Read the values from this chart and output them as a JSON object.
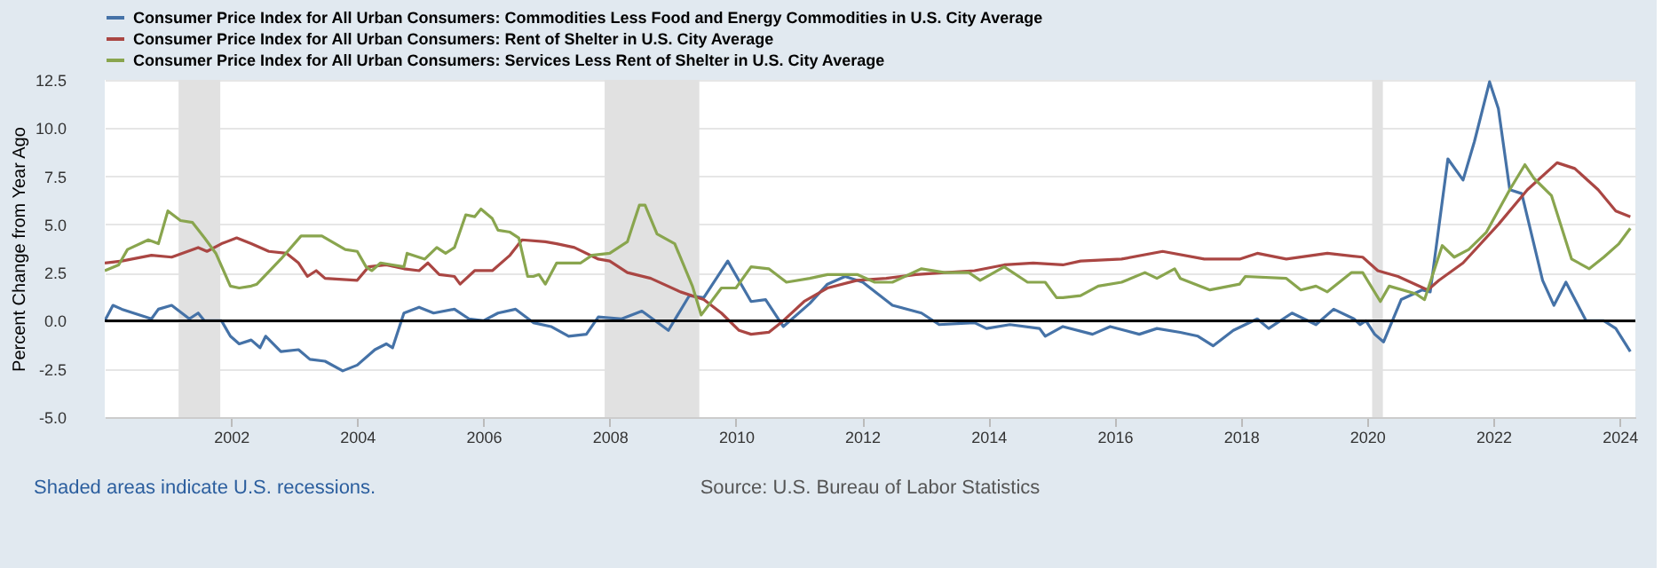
{
  "chart_data": {
    "type": "line",
    "ylabel": "Percent Change from Year Ago",
    "annotations": [
      "Shaded areas indicate U.S. recessions.",
      "Source: U.S. Bureau of Labor Statistics"
    ],
    "xlim": [
      2000.0,
      2024.25
    ],
    "xticks": [
      2002,
      2004,
      2006,
      2008,
      2010,
      2012,
      2014,
      2016,
      2018,
      2020,
      2022,
      2024
    ],
    "ylim": [
      -5,
      12.5
    ],
    "yticks": [
      {
        "value": -5,
        "label": "-5.0"
      },
      -2.5,
      {
        "value": 0,
        "label": "0.0"
      },
      2.5,
      {
        "value": 5,
        "label": "5.0"
      },
      7.5,
      {
        "value": 10,
        "label": "10.0"
      },
      12.5
    ],
    "grid": "y",
    "legend": "top left",
    "line_style": "solid",
    "ref_lines": [
      {
        "axis": "y",
        "value": 0,
        "color": "#000000"
      }
    ],
    "bands": [
      {
        "axis": "x",
        "from": 2001.17,
        "to": 2001.83,
        "color": "#e1e1e1"
      },
      {
        "axis": "x",
        "from": 2007.92,
        "to": 2009.42,
        "color": "#e1e1e1"
      },
      {
        "axis": "x",
        "from": 2020.08,
        "to": 2020.25,
        "color": "#e1e1e1"
      }
    ],
    "series": [
      {
        "name": "Consumer Price Index for All Urban Consumers: Commodities Less Food and Energy Commodities in U.S. City Average",
        "color": "#4572a7",
        "x": [
          2000.0,
          2000.13,
          2000.27,
          2000.74,
          2000.85,
          2001.06,
          2001.34,
          2001.48,
          2001.58,
          2001.85,
          2001.99,
          2002.13,
          2002.32,
          2002.46,
          2002.55,
          2002.79,
          2003.07,
          2003.25,
          2003.49,
          2003.77,
          2004.0,
          2004.28,
          2004.46,
          2004.56,
          2004.74,
          2004.98,
          2005.21,
          2005.54,
          2005.77,
          2006.0,
          2006.23,
          2006.51,
          2006.79,
          2007.07,
          2007.35,
          2007.63,
          2007.82,
          2008.19,
          2008.51,
          2008.93,
          2009.26,
          2009.49,
          2009.87,
          2010.24,
          2010.47,
          2010.75,
          2011.17,
          2011.45,
          2011.73,
          2012.01,
          2012.48,
          2012.94,
          2013.22,
          2013.78,
          2013.97,
          2014.34,
          2014.81,
          2014.9,
          2015.18,
          2015.65,
          2015.93,
          2016.39,
          2016.67,
          2017.04,
          2017.32,
          2017.56,
          2017.88,
          2018.26,
          2018.44,
          2018.81,
          2019.19,
          2019.47,
          2019.79,
          2019.89,
          2019.98,
          2020.12,
          2020.26,
          2020.54,
          2020.87,
          2021.0,
          2021.28,
          2021.52,
          2021.7,
          2021.94,
          2022.08,
          2022.26,
          2022.45,
          2022.78,
          2022.96,
          2023.15,
          2023.47,
          2023.75,
          2023.94,
          2024.17
        ],
        "values": [
          0,
          0.8,
          0.6,
          0.1,
          0.6,
          0.8,
          0.1,
          0.4,
          0,
          0,
          -0.8,
          -1.2,
          -1.0,
          -1.4,
          -0.8,
          -1.6,
          -1.5,
          -2.0,
          -2.1,
          -2.6,
          -2.3,
          -1.5,
          -1.2,
          -1.4,
          0.4,
          0.7,
          0.4,
          0.6,
          0.1,
          0,
          0.4,
          0.6,
          -0.1,
          -0.3,
          -0.8,
          -0.7,
          0.2,
          0.1,
          0.5,
          -0.5,
          1.3,
          1.2,
          3.1,
          1.0,
          1.1,
          -0.3,
          0.9,
          1.9,
          2.3,
          2.0,
          0.8,
          0.4,
          -0.2,
          -0.1,
          -0.4,
          -0.2,
          -0.4,
          -0.8,
          -0.3,
          -0.7,
          -0.3,
          -0.7,
          -0.4,
          -0.6,
          -0.8,
          -1.3,
          -0.5,
          0.1,
          -0.4,
          0.4,
          -0.2,
          0.6,
          0.1,
          -0.2,
          0.0,
          -0.7,
          -1.1,
          1.1,
          1.6,
          1.5,
          8.4,
          7.3,
          9.3,
          12.4,
          11.0,
          6.8,
          6.6,
          2.1,
          0.8,
          2.0,
          0,
          0,
          -0.4,
          -1.6
        ]
      },
      {
        "name": "Consumer Price Index for All Urban Consumers: Rent of Shelter in U.S. City Average",
        "color": "#aa4643",
        "x": [
          2000.0,
          2000.27,
          2000.74,
          2001.06,
          2001.48,
          2001.62,
          2001.85,
          2002.09,
          2002.32,
          2002.6,
          2002.88,
          2003.07,
          2003.21,
          2003.35,
          2003.49,
          2004.0,
          2004.18,
          2004.46,
          2004.74,
          2004.98,
          2005.12,
          2005.3,
          2005.54,
          2005.63,
          2005.86,
          2006.14,
          2006.42,
          2006.61,
          2006.98,
          2007.16,
          2007.44,
          2007.82,
          2008.0,
          2008.28,
          2008.65,
          2009.12,
          2009.49,
          2009.77,
          2010.05,
          2010.24,
          2010.52,
          2010.75,
          2011.08,
          2011.45,
          2011.92,
          2012.38,
          2012.85,
          2013.31,
          2013.78,
          2014.25,
          2014.71,
          2015.18,
          2015.46,
          2016.11,
          2016.76,
          2017.42,
          2017.98,
          2018.26,
          2018.72,
          2019.37,
          2019.93,
          2020.17,
          2020.49,
          2020.96,
          2021.14,
          2021.52,
          2022.08,
          2022.54,
          2023.01,
          2023.29,
          2023.66,
          2023.94,
          2024.17
        ],
        "values": [
          3.0,
          3.1,
          3.4,
          3.3,
          3.8,
          3.6,
          4.0,
          4.3,
          4.0,
          3.6,
          3.5,
          3.0,
          2.3,
          2.6,
          2.2,
          2.1,
          2.8,
          2.9,
          2.7,
          2.6,
          3.0,
          2.4,
          2.3,
          1.9,
          2.6,
          2.6,
          3.4,
          4.2,
          4.1,
          4.0,
          3.8,
          3.2,
          3.1,
          2.5,
          2.2,
          1.5,
          1.1,
          0.4,
          -0.5,
          -0.7,
          -0.6,
          0,
          1.0,
          1.7,
          2.1,
          2.2,
          2.4,
          2.5,
          2.6,
          2.9,
          3.0,
          2.9,
          3.1,
          3.2,
          3.6,
          3.2,
          3.2,
          3.5,
          3.2,
          3.5,
          3.3,
          2.6,
          2.3,
          1.6,
          2.1,
          3.0,
          5.0,
          6.8,
          8.2,
          7.9,
          6.8,
          5.7,
          5.4
        ]
      },
      {
        "name": "Consumer Price Index for All Urban Consumers: Services Less Rent of Shelter in U.S. City Average",
        "color": "#89a54e",
        "x": [
          2000.0,
          2000.22,
          2000.36,
          2000.69,
          2000.85,
          2001.0,
          2001.2,
          2001.39,
          2001.58,
          2001.76,
          2001.99,
          2002.13,
          2002.32,
          2002.41,
          2002.79,
          2003.11,
          2003.44,
          2003.81,
          2004.0,
          2004.14,
          2004.23,
          2004.37,
          2004.56,
          2004.74,
          2004.79,
          2005.07,
          2005.26,
          2005.4,
          2005.54,
          2005.72,
          2005.86,
          2005.96,
          2006.14,
          2006.23,
          2006.42,
          2006.56,
          2006.7,
          2006.79,
          2006.88,
          2006.98,
          2007.16,
          2007.54,
          2007.72,
          2008.0,
          2008.28,
          2008.47,
          2008.56,
          2008.75,
          2009.03,
          2009.31,
          2009.45,
          2009.77,
          2010.0,
          2010.24,
          2010.52,
          2010.8,
          2011.17,
          2011.45,
          2011.92,
          2012.2,
          2012.48,
          2012.94,
          2013.31,
          2013.69,
          2013.87,
          2014.25,
          2014.62,
          2014.9,
          2015.08,
          2015.18,
          2015.46,
          2015.74,
          2016.11,
          2016.48,
          2016.67,
          2016.95,
          2017.04,
          2017.51,
          2017.98,
          2018.07,
          2018.72,
          2018.95,
          2019.19,
          2019.37,
          2019.75,
          2019.93,
          2020.21,
          2020.35,
          2020.77,
          2020.91,
          2021.19,
          2021.38,
          2021.61,
          2021.89,
          2022.26,
          2022.5,
          2022.64,
          2022.92,
          2023.24,
          2023.52,
          2023.75,
          2023.99,
          2024.17
        ],
        "values": [
          2.6,
          2.9,
          3.7,
          4.2,
          4.0,
          5.7,
          5.2,
          5.1,
          4.3,
          3.5,
          1.8,
          1.7,
          1.8,
          1.9,
          3.2,
          4.4,
          4.4,
          3.7,
          3.6,
          2.8,
          2.6,
          3.0,
          2.9,
          2.8,
          3.5,
          3.2,
          3.8,
          3.5,
          3.8,
          5.5,
          5.4,
          5.8,
          5.3,
          4.7,
          4.6,
          4.3,
          2.3,
          2.3,
          2.4,
          1.9,
          3.0,
          3.0,
          3.4,
          3.5,
          4.1,
          6.0,
          6.0,
          4.5,
          4.0,
          1.8,
          0.3,
          1.7,
          1.7,
          2.8,
          2.7,
          2.0,
          2.2,
          2.4,
          2.4,
          2.0,
          2.0,
          2.7,
          2.5,
          2.5,
          2.1,
          2.8,
          2.0,
          2.0,
          1.2,
          1.2,
          1.3,
          1.8,
          2.0,
          2.5,
          2.2,
          2.7,
          2.2,
          1.6,
          1.9,
          2.3,
          2.2,
          1.6,
          1.8,
          1.5,
          2.5,
          2.5,
          1.0,
          1.8,
          1.4,
          1.1,
          3.9,
          3.3,
          3.7,
          4.6,
          6.8,
          8.1,
          7.4,
          6.5,
          3.2,
          2.7,
          3.3,
          4.0,
          4.8
        ]
      }
    ]
  }
}
